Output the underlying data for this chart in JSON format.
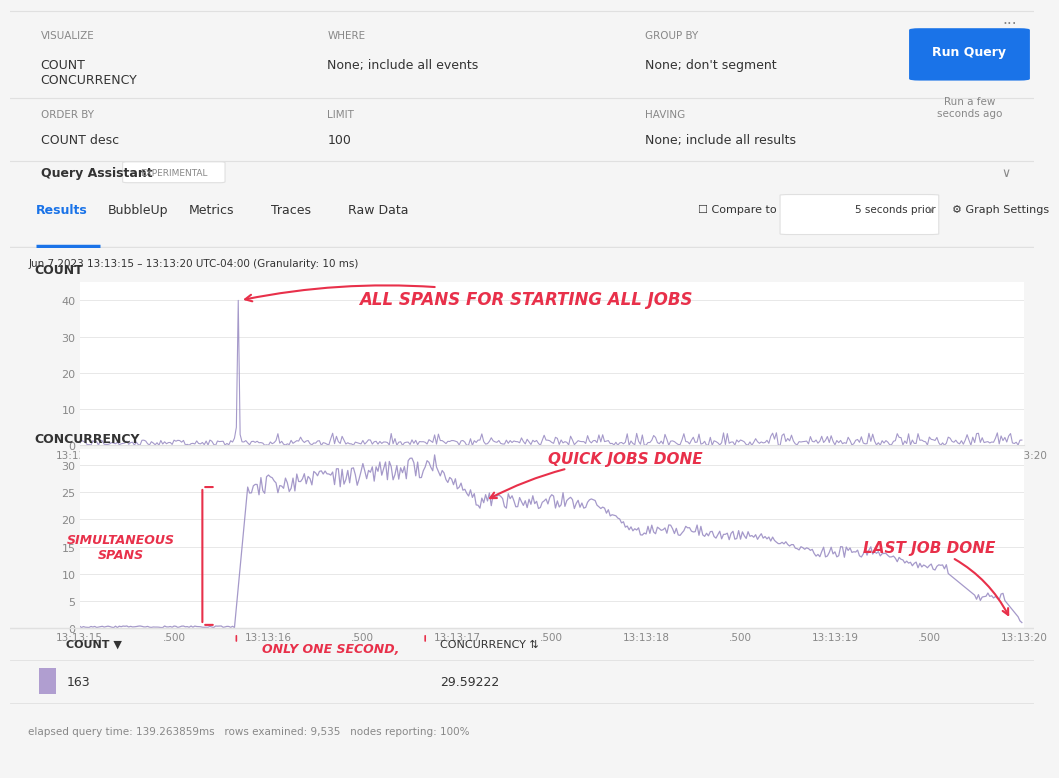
{
  "bg_color": "#f5f5f5",
  "white": "#ffffff",
  "header_bg": "#f5f5f5",
  "border_color": "#e0e0e0",
  "text_dark": "#333333",
  "text_gray": "#888888",
  "blue_btn": "#1a73e8",
  "line_color": "#9b8ec4",
  "annotation_color": "#e8304a",
  "grid_color": "#e8e8e8",
  "tab_blue": "#1a73e8",
  "header_labels": [
    "VISUALIZE",
    "WHERE",
    "GROUP BY"
  ],
  "header_values": [
    "COUNT\nCONCURRENCY",
    "None; include all events",
    "None; don't segment"
  ],
  "header2_labels": [
    "ORDER BY",
    "LIMIT",
    "HAVING"
  ],
  "header2_values": [
    "COUNT desc",
    "100",
    "None; include all results"
  ],
  "date_label": "Jun 7 2023 13:13:15 – 13:13:20 UTC-04:00 (Granularity: 10 ms)",
  "count_ylabel": "COUNT",
  "count_yticks": [
    0,
    10,
    20,
    30,
    40
  ],
  "count_ylim": [
    0,
    45
  ],
  "concurrency_ylabel": "CONCURRENCY",
  "concurrency_yticks": [
    0,
    5,
    10,
    15,
    20,
    25,
    30
  ],
  "concurrency_ylim": [
    0,
    33
  ],
  "xtick_labels": [
    "13:13:15",
    ".500",
    "13:13:16",
    ".500",
    "13:13:17",
    ".500",
    "13:13:18",
    ".500",
    "13:13:19",
    ".500",
    "13:13:20"
  ],
  "xtick_positions": [
    0,
    50,
    100,
    150,
    200,
    250,
    300,
    350,
    400,
    450,
    500
  ],
  "tabs": [
    "Results",
    "BubbleUp",
    "Metrics",
    "Traces",
    "Raw Data"
  ],
  "active_tab": "Results",
  "compare_label": "Compare to",
  "compare_value": "5 seconds prior",
  "footer_cols": [
    "COUNT ▼",
    "CONCURRENCY ⇅"
  ],
  "footer_vals": [
    "163",
    "29.59222"
  ],
  "footer_note": "elapsed query time: 139.263859ms   rows examined: 9,535   nodes reporting: 100%",
  "annotation1_text": "ALL SPANS FOR STARTING ALL JOBS",
  "annotation2_text": "QUICK JOBS DONE",
  "annotation3_text": "SIMULTANEOUS\nSPANS",
  "annotation4_text": "ONLY ONE SECOND,",
  "annotation5_text": "LAST JOB DONE"
}
